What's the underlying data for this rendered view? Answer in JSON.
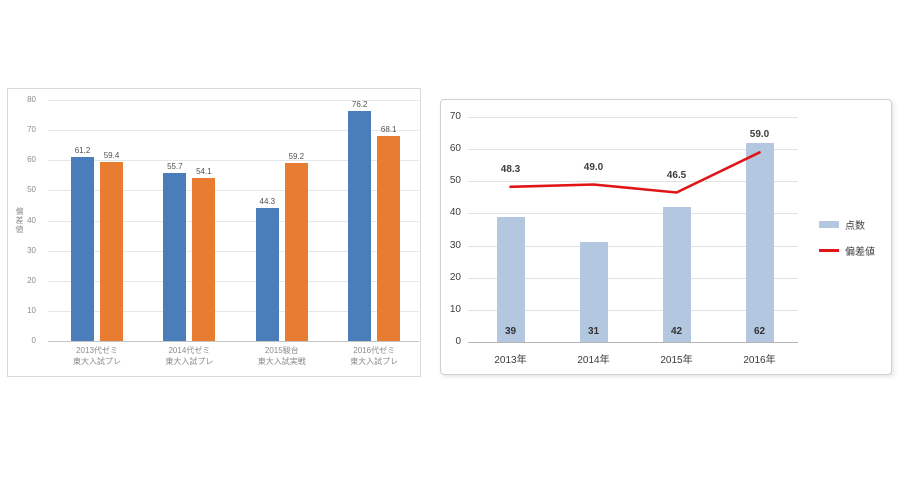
{
  "chart_data": [
    {
      "name": "mock-exam-deviation-chart",
      "type": "bar",
      "title": "",
      "xlabel": "",
      "ylabel": "偏差値",
      "ylim": [
        0,
        80
      ],
      "yticks": [
        0,
        10,
        20,
        30,
        40,
        50,
        60,
        70,
        80
      ],
      "grid": true,
      "legend_position": "none",
      "categories": [
        [
          "2013代ゼミ",
          "東大入試プレ"
        ],
        [
          "2014代ゼミ",
          "東大入試プレ"
        ],
        [
          "2015駿台",
          "東大入試実戦"
        ],
        [
          "2016代ゼミ",
          "東大入試プレ"
        ]
      ],
      "series": [
        {
          "name": "series-blue",
          "color": "#4A7EBB",
          "values": [
            61.2,
            55.7,
            44.3,
            76.2
          ],
          "labels": [
            "61.2",
            "55.7",
            "44.3",
            "76.2"
          ]
        },
        {
          "name": "series-orange",
          "color": "#E87D31",
          "values": [
            59.4,
            54.1,
            59.2,
            68.1
          ],
          "labels": [
            "59.4",
            "54.1",
            "59.2",
            "68.1"
          ]
        }
      ]
    },
    {
      "name": "score-and-deviation-chart",
      "type": "bar+line",
      "title": "",
      "xlabel": "",
      "ylabel": "",
      "ylim": [
        0,
        70
      ],
      "yticks": [
        0,
        10,
        20,
        30,
        40,
        50,
        60,
        70
      ],
      "grid": true,
      "legend_position": "right",
      "categories": [
        "2013年",
        "2014年",
        "2015年",
        "2016年"
      ],
      "bar_series": {
        "name": "点数",
        "color": "#B3C7E0",
        "values": [
          39,
          31,
          42,
          62
        ],
        "labels": [
          "39",
          "31",
          "42",
          "62"
        ]
      },
      "line_series": {
        "name": "偏差値",
        "color": "#E01515",
        "values": [
          48.3,
          49.0,
          46.5,
          59.0
        ],
        "labels": [
          "48.3",
          "49.0",
          "46.5",
          "59.0"
        ]
      }
    }
  ]
}
